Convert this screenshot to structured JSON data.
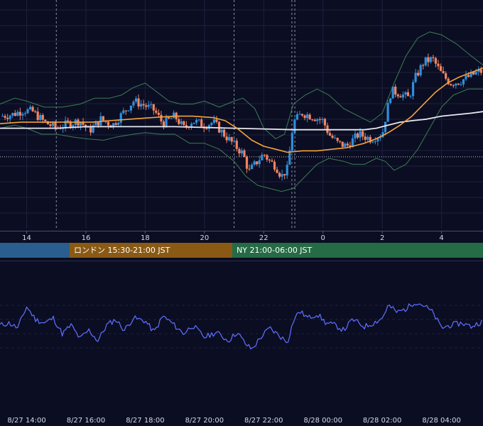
{
  "colors": {
    "background": "#0b0d22",
    "grid": "#1c2140",
    "candle_up": "#2f8fdc",
    "candle_down": "#f08462",
    "bollinger": "#3b7d55",
    "ma_orange": "#f5a43a",
    "ma_white": "#e8e8f0",
    "oscillator": "#5b6bf5",
    "asia_session": "#2a5e8f",
    "london_session": "#8a5a14",
    "ny_session": "#256b45"
  },
  "sessions": [
    {
      "label": "",
      "color": "#2a5e8f"
    },
    {
      "label": "ロンドン 15:30-21:00 JST",
      "color": "#8a5a14"
    },
    {
      "label": "NY 21:00-06:00 JST",
      "color": "#256b45"
    }
  ],
  "chart_data": [
    {
      "type": "candlestick",
      "x_ticks": [
        "14",
        "16",
        "18",
        "20",
        "22",
        "0",
        "2",
        "4"
      ],
      "x_hours": [
        14,
        16,
        18,
        20,
        22,
        24,
        26,
        28
      ],
      "x_range": [
        13.1,
        29.4
      ],
      "y_range": [
        0,
        100
      ],
      "dotted_hline": 43,
      "session_markers_hours": [
        15.0,
        21.0,
        22.95,
        23.05
      ],
      "series": [
        {
          "name": "",
          "type": "candles",
          "close_path": [
            [
              13.1,
              70
            ],
            [
              13.5,
              71
            ],
            [
              13.9,
              74
            ],
            [
              14.2,
              73
            ],
            [
              14.6,
              66
            ],
            [
              15.0,
              62
            ],
            [
              15.4,
              65
            ],
            [
              15.8,
              67
            ],
            [
              16.1,
              60
            ],
            [
              16.5,
              68
            ],
            [
              16.9,
              64
            ],
            [
              17.2,
              71
            ],
            [
              17.6,
              80
            ],
            [
              18.0,
              77
            ],
            [
              18.3,
              74
            ],
            [
              18.6,
              65
            ],
            [
              19.0,
              70
            ],
            [
              19.3,
              62
            ],
            [
              19.6,
              67
            ],
            [
              20.0,
              64
            ],
            [
              20.3,
              66
            ],
            [
              20.7,
              57
            ],
            [
              21.0,
              51
            ],
            [
              21.3,
              45
            ],
            [
              21.5,
              33
            ],
            [
              21.7,
              38
            ],
            [
              22.0,
              45
            ],
            [
              22.2,
              40
            ],
            [
              22.4,
              37
            ],
            [
              22.6,
              30
            ],
            [
              22.8,
              35
            ],
            [
              23.0,
              66
            ],
            [
              23.3,
              72
            ],
            [
              23.6,
              70
            ],
            [
              24.0,
              67
            ],
            [
              24.2,
              58
            ],
            [
              24.5,
              52
            ],
            [
              24.8,
              50
            ],
            [
              25.2,
              58
            ],
            [
              25.6,
              55
            ],
            [
              26.0,
              58
            ],
            [
              26.1,
              68
            ],
            [
              26.3,
              87
            ],
            [
              26.6,
              85
            ],
            [
              26.9,
              82
            ],
            [
              27.1,
              95
            ],
            [
              27.4,
              106
            ],
            [
              27.7,
              108
            ],
            [
              28.0,
              98
            ],
            [
              28.3,
              92
            ],
            [
              28.6,
              93
            ],
            [
              28.9,
              96
            ],
            [
              29.2,
              99
            ],
            [
              29.4,
              100
            ]
          ]
        },
        {
          "name": "",
          "type": "upper_band",
          "path": [
            [
              13.1,
              78
            ],
            [
              13.6,
              82
            ],
            [
              14.0,
              80
            ],
            [
              14.6,
              76
            ],
            [
              15.2,
              76
            ],
            [
              15.8,
              78
            ],
            [
              16.3,
              82
            ],
            [
              16.8,
              82
            ],
            [
              17.2,
              84
            ],
            [
              17.6,
              89
            ],
            [
              18.0,
              92
            ],
            [
              18.4,
              86
            ],
            [
              18.8,
              80
            ],
            [
              19.2,
              78
            ],
            [
              19.6,
              78
            ],
            [
              20.0,
              80
            ],
            [
              20.5,
              76
            ],
            [
              21.0,
              80
            ],
            [
              21.3,
              82
            ],
            [
              21.7,
              75
            ],
            [
              22.0,
              62
            ],
            [
              22.4,
              55
            ],
            [
              22.7,
              58
            ],
            [
              23.0,
              78
            ],
            [
              23.4,
              84
            ],
            [
              23.8,
              88
            ],
            [
              24.2,
              84
            ],
            [
              24.7,
              75
            ],
            [
              25.2,
              70
            ],
            [
              25.6,
              66
            ],
            [
              26.0,
              72
            ],
            [
              26.4,
              92
            ],
            [
              26.8,
              110
            ],
            [
              27.2,
              122
            ],
            [
              27.6,
              126
            ],
            [
              28.0,
              124
            ],
            [
              28.5,
              118
            ],
            [
              29.0,
              110
            ],
            [
              29.4,
              104
            ]
          ]
        },
        {
          "name": "",
          "type": "lower_band",
          "path": [
            [
              13.1,
              62
            ],
            [
              13.6,
              64
            ],
            [
              14.0,
              62
            ],
            [
              14.5,
              58
            ],
            [
              15.0,
              58
            ],
            [
              15.6,
              56
            ],
            [
              16.0,
              55
            ],
            [
              16.6,
              54
            ],
            [
              17.0,
              56
            ],
            [
              17.6,
              58
            ],
            [
              18.0,
              59
            ],
            [
              18.5,
              58
            ],
            [
              19.0,
              58
            ],
            [
              19.5,
              52
            ],
            [
              20.0,
              52
            ],
            [
              20.5,
              48
            ],
            [
              21.0,
              40
            ],
            [
              21.4,
              30
            ],
            [
              21.8,
              24
            ],
            [
              22.2,
              22
            ],
            [
              22.6,
              20
            ],
            [
              23.0,
              22
            ],
            [
              23.3,
              28
            ],
            [
              23.8,
              38
            ],
            [
              24.2,
              42
            ],
            [
              24.7,
              40
            ],
            [
              25.0,
              38
            ],
            [
              25.4,
              38
            ],
            [
              25.8,
              42
            ],
            [
              26.1,
              40
            ],
            [
              26.4,
              34
            ],
            [
              26.8,
              38
            ],
            [
              27.2,
              48
            ],
            [
              27.6,
              62
            ],
            [
              28.0,
              76
            ],
            [
              28.4,
              84
            ],
            [
              28.9,
              88
            ],
            [
              29.4,
              88
            ]
          ]
        },
        {
          "name": "",
          "type": "ma_orange",
          "path": [
            [
              13.1,
              65
            ],
            [
              13.8,
              66
            ],
            [
              14.6,
              66
            ],
            [
              15.4,
              66
            ],
            [
              16.2,
              66
            ],
            [
              16.8,
              67
            ],
            [
              17.5,
              68
            ],
            [
              18.2,
              69
            ],
            [
              19.0,
              70
            ],
            [
              19.6,
              70
            ],
            [
              20.3,
              69
            ],
            [
              20.7,
              67
            ],
            [
              21.1,
              62
            ],
            [
              21.6,
              54
            ],
            [
              22.0,
              50
            ],
            [
              22.4,
              48
            ],
            [
              22.8,
              46
            ],
            [
              23.3,
              47
            ],
            [
              23.8,
              47
            ],
            [
              24.3,
              48
            ],
            [
              24.8,
              49
            ],
            [
              25.4,
              52
            ],
            [
              25.8,
              55
            ],
            [
              26.2,
              59
            ],
            [
              26.6,
              64
            ],
            [
              27.0,
              70
            ],
            [
              27.4,
              78
            ],
            [
              27.8,
              86
            ],
            [
              28.2,
              92
            ],
            [
              28.6,
              96
            ],
            [
              29.0,
              99
            ],
            [
              29.4,
              102
            ]
          ]
        },
        {
          "name": "",
          "type": "ma_white",
          "path": [
            [
              13.1,
              62
            ],
            [
              14.0,
              62
            ],
            [
              15.0,
              62
            ],
            [
              16.0,
              63
            ],
            [
              17.0,
              63
            ],
            [
              18.0,
              63
            ],
            [
              19.0,
              63
            ],
            [
              20.0,
              62.5
            ],
            [
              21.0,
              62
            ],
            [
              22.0,
              61.5
            ],
            [
              23.0,
              61
            ],
            [
              24.0,
              61
            ],
            [
              24.8,
              61
            ],
            [
              25.4,
              61
            ],
            [
              25.8,
              62
            ],
            [
              26.2,
              64
            ],
            [
              26.6,
              66
            ],
            [
              27.0,
              67
            ],
            [
              27.5,
              68
            ],
            [
              28.0,
              70
            ],
            [
              28.5,
              71
            ],
            [
              29.0,
              72
            ],
            [
              29.4,
              73
            ]
          ]
        }
      ]
    },
    {
      "type": "line",
      "x_tick_labels": [
        "8/27 14:00",
        "8/27 16:00",
        "8/27 18:00",
        "8/27 20:00",
        "8/27 22:00",
        "8/28 00:00",
        "8/28 02:00",
        "8/28 04:00"
      ],
      "x_hours": [
        14,
        16,
        18,
        20,
        22,
        24,
        26,
        28
      ],
      "x_range": [
        13.1,
        29.4
      ],
      "y_range": [
        0,
        100
      ],
      "hlines": [
        20,
        40,
        60,
        80
      ],
      "series": [
        {
          "name": "",
          "path": [
            [
              13.1,
              52
            ],
            [
              13.4,
              55
            ],
            [
              13.7,
              48
            ],
            [
              14.0,
              78
            ],
            [
              14.3,
              60
            ],
            [
              14.6,
              55
            ],
            [
              14.9,
              62
            ],
            [
              15.2,
              40
            ],
            [
              15.5,
              52
            ],
            [
              15.8,
              33
            ],
            [
              16.1,
              45
            ],
            [
              16.4,
              30
            ],
            [
              16.7,
              52
            ],
            [
              17.0,
              60
            ],
            [
              17.3,
              45
            ],
            [
              17.6,
              62
            ],
            [
              18.0,
              58
            ],
            [
              18.3,
              42
            ],
            [
              18.6,
              65
            ],
            [
              18.9,
              55
            ],
            [
              19.3,
              40
            ],
            [
              19.6,
              52
            ],
            [
              20.0,
              35
            ],
            [
              20.4,
              42
            ],
            [
              20.8,
              30
            ],
            [
              21.1,
              42
            ],
            [
              21.4,
              25
            ],
            [
              21.6,
              18
            ],
            [
              21.9,
              35
            ],
            [
              22.2,
              48
            ],
            [
              22.5,
              38
            ],
            [
              22.8,
              28
            ],
            [
              23.0,
              58
            ],
            [
              23.2,
              72
            ],
            [
              23.5,
              62
            ],
            [
              23.8,
              68
            ],
            [
              24.1,
              55
            ],
            [
              24.4,
              52
            ],
            [
              24.7,
              45
            ],
            [
              25.0,
              60
            ],
            [
              25.4,
              50
            ],
            [
              25.7,
              55
            ],
            [
              26.0,
              62
            ],
            [
              26.2,
              80
            ],
            [
              26.5,
              70
            ],
            [
              26.8,
              75
            ],
            [
              27.1,
              85
            ],
            [
              27.4,
              80
            ],
            [
              27.7,
              70
            ],
            [
              28.0,
              48
            ],
            [
              28.3,
              52
            ],
            [
              28.7,
              55
            ],
            [
              29.0,
              50
            ],
            [
              29.4,
              58
            ]
          ]
        }
      ]
    }
  ]
}
